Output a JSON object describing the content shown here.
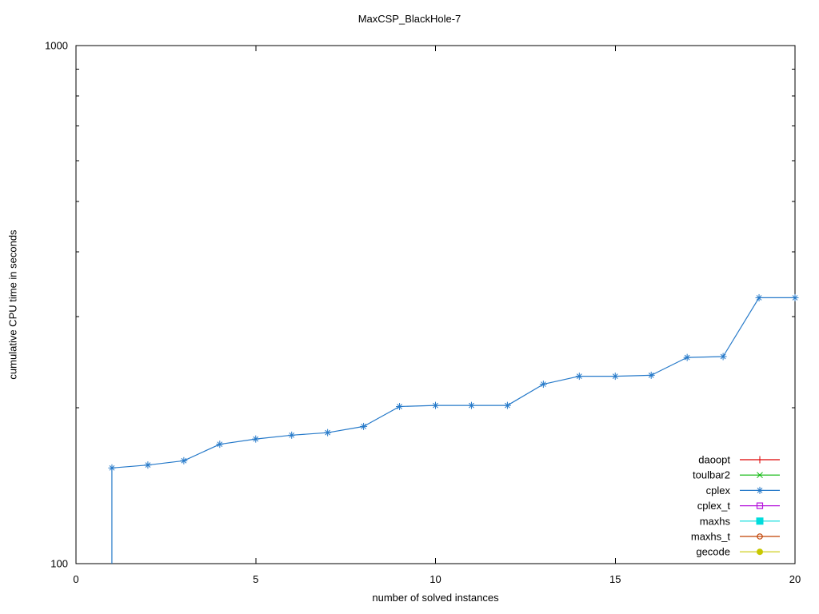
{
  "title": "MaxCSP_BlackHole-7",
  "colors": {
    "background": "#ffffff",
    "axis": "#000000",
    "text": "#000000"
  },
  "chart_data": {
    "type": "line",
    "title": "MaxCSP_BlackHole-7",
    "xlabel": "number of solved instances",
    "ylabel": "cumulative CPU time in seconds",
    "xlim": [
      0,
      20
    ],
    "ylim": [
      100,
      1000
    ],
    "yscale": "log",
    "grid": false,
    "x_ticks": [
      0,
      5,
      10,
      15,
      20
    ],
    "y_major_ticks": [
      100,
      1000
    ],
    "y_minor_ticks": [
      200,
      300,
      400,
      500,
      600,
      700,
      800,
      900
    ],
    "legend_position": "bottom-right-inside",
    "series": [
      {
        "name": "daoopt",
        "color": "#dd0000",
        "marker": "plus",
        "x": [],
        "values": []
      },
      {
        "name": "toulbar2",
        "color": "#00b400",
        "marker": "cross",
        "x": [],
        "values": []
      },
      {
        "name": "cplex",
        "color": "#2579c9",
        "marker": "asterisk",
        "line_start": {
          "x": 1,
          "value": 100
        },
        "x": [
          1,
          2,
          3,
          4,
          5,
          6,
          7,
          8,
          9,
          10,
          11,
          12,
          13,
          14,
          15,
          16,
          17,
          18,
          19,
          20
        ],
        "values": [
          153,
          155,
          158,
          170,
          174,
          177,
          179,
          184,
          201,
          202,
          202,
          202,
          222,
          230,
          230,
          231,
          250,
          251,
          326,
          326
        ]
      },
      {
        "name": "cplex_t",
        "color": "#b414dc",
        "marker": "open-square",
        "x": [],
        "values": []
      },
      {
        "name": "maxhs",
        "color": "#00dcdc",
        "marker": "filled-square",
        "x": [],
        "values": []
      },
      {
        "name": "maxhs_t",
        "color": "#c04000",
        "marker": "open-circle",
        "x": [],
        "values": []
      },
      {
        "name": "gecode",
        "color": "#c8c800",
        "marker": "filled-circle",
        "x": [],
        "values": []
      }
    ]
  }
}
